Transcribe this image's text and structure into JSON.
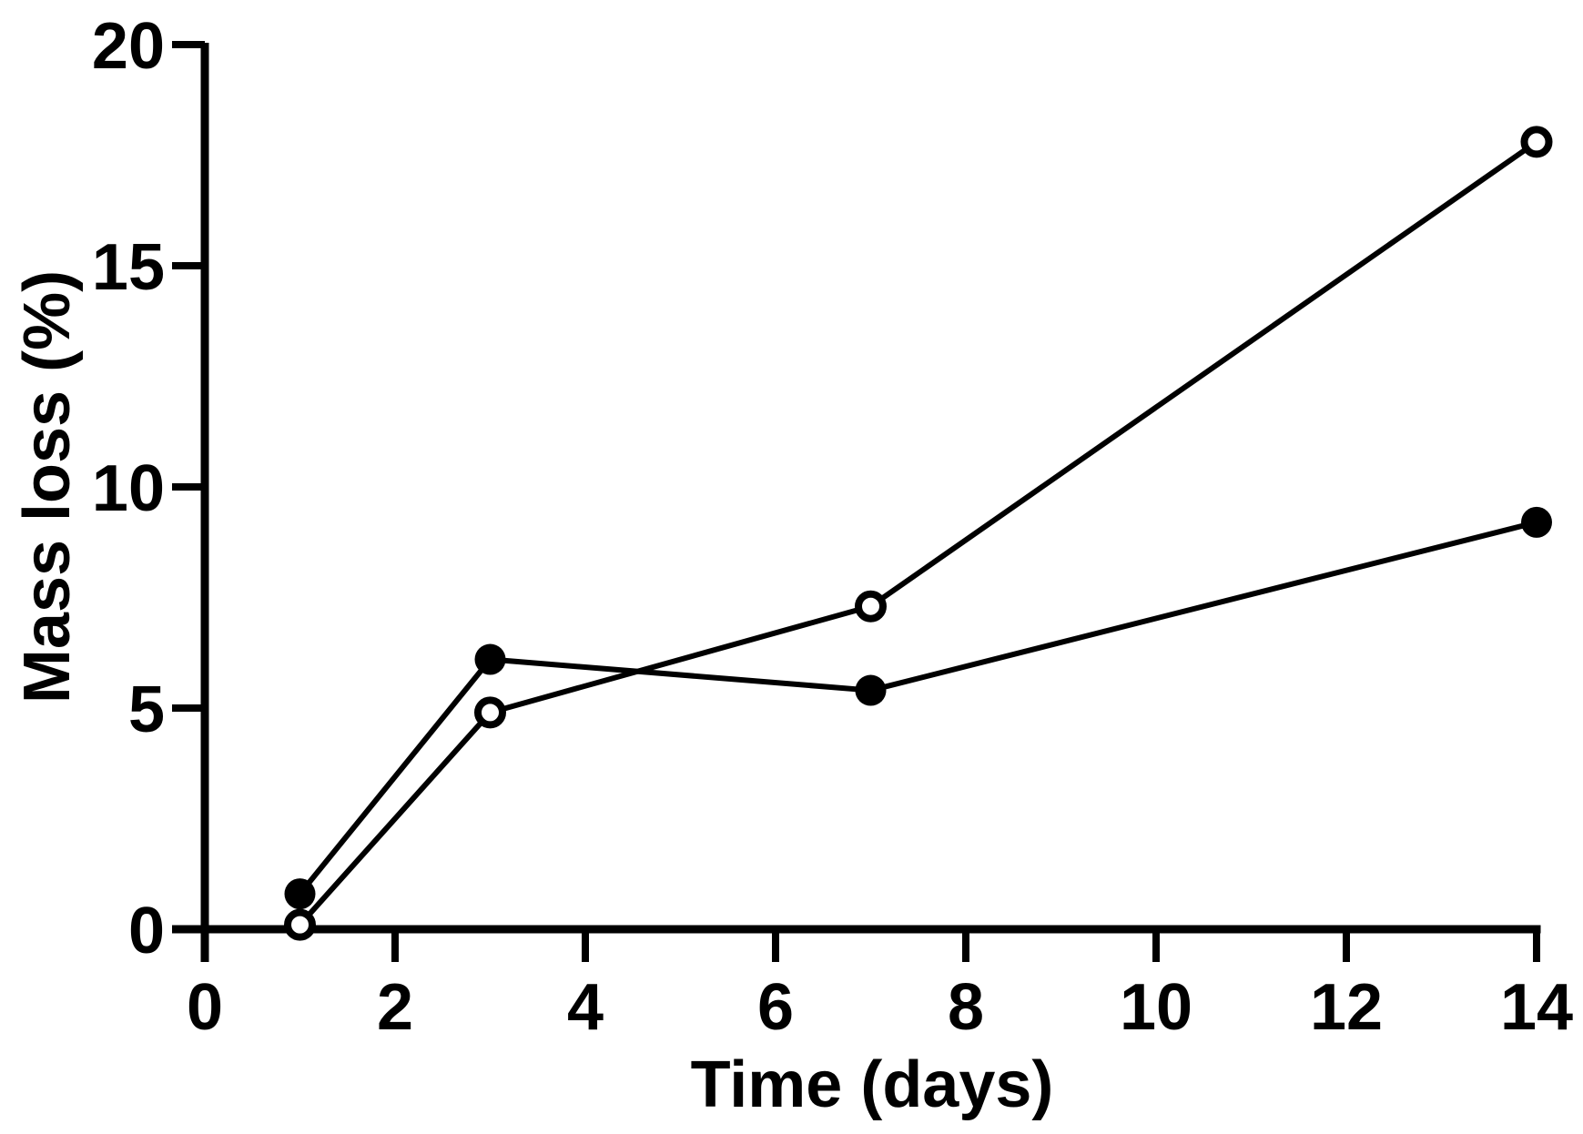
{
  "chart_data": {
    "type": "line",
    "title": "",
    "xlabel": "Time (days)",
    "ylabel": "Mass loss (%)",
    "xlim": [
      0,
      14
    ],
    "ylim": [
      0,
      20
    ],
    "x_ticks": [
      0,
      2,
      4,
      6,
      8,
      10,
      12,
      14
    ],
    "y_ticks": [
      0,
      5,
      10,
      15,
      20
    ],
    "grid": false,
    "legend_position": "none",
    "series": [
      {
        "name": "filled-circle-series",
        "marker": "filled-circle",
        "x": [
          1,
          3,
          7,
          14
        ],
        "y": [
          0.8,
          6.1,
          5.4,
          9.2
        ]
      },
      {
        "name": "open-circle-series",
        "marker": "open-circle",
        "x": [
          1,
          3,
          7,
          14
        ],
        "y": [
          0.1,
          4.9,
          7.3,
          17.8
        ]
      }
    ],
    "colors": {
      "line": "#000000",
      "axis": "#000000",
      "text": "#000000",
      "background": "#ffffff",
      "open_marker_fill": "#ffffff",
      "filled_marker_fill": "#000000"
    }
  }
}
